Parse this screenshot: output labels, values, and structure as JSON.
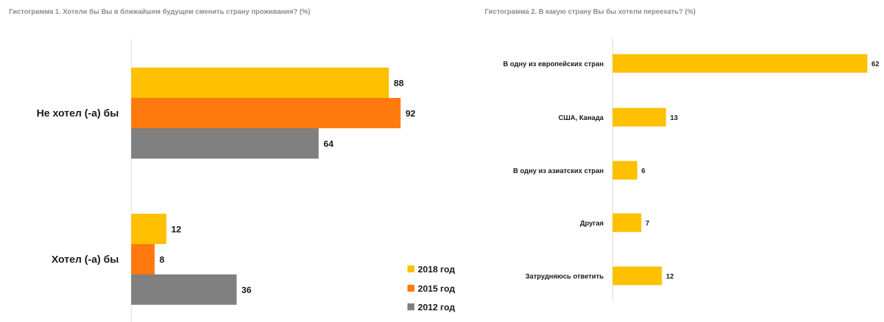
{
  "colors": {
    "2018": "#FFC000",
    "2015": "#FF7A0E",
    "2012": "#808080",
    "axis": "#d9d9d9"
  },
  "chart_data": [
    {
      "type": "bar",
      "orientation": "horizontal",
      "title": "Гистограмма 1. Хотели бы Вы в ближайшем будущем сменить страну проживания? (%)",
      "categories": [
        "Не хотел (-а) бы",
        "Хотел (-а) бы"
      ],
      "series": [
        {
          "name": "2018 год",
          "values": [
            88,
            12
          ]
        },
        {
          "name": "2015 год",
          "values": [
            92,
            8
          ]
        },
        {
          "name": "2012 год",
          "values": [
            64,
            36
          ]
        }
      ],
      "legend": "bottom-right",
      "grid": false
    },
    {
      "type": "bar",
      "orientation": "horizontal",
      "title": "Гистограмма 2. В какую страну Вы бы хотели переехать? (%)",
      "categories": [
        "В одну из европейских стран",
        "США, Канада",
        "В одну из азиатских стран",
        "Другая",
        "Затрудняюсь ответить"
      ],
      "values": [
        62,
        13,
        6,
        7,
        12
      ],
      "grid": false
    }
  ]
}
